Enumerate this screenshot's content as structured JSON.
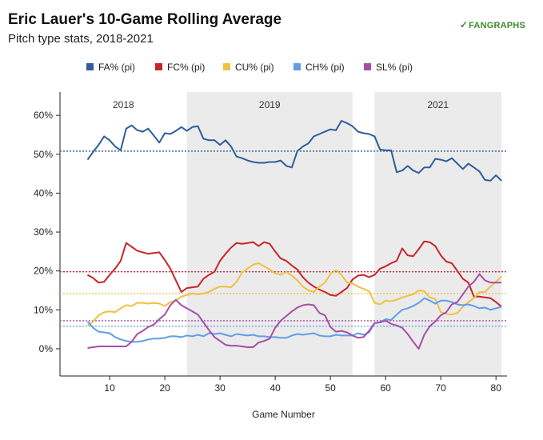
{
  "header": {
    "title": "Eric Lauer's 10-Game Rolling Average",
    "subtitle": "Pitch type stats, 2018-2021",
    "brand": "FANGRAPHS",
    "brand_mark": "✓"
  },
  "chart_data": {
    "type": "line",
    "title": "Eric Lauer's 10-Game Rolling Average",
    "subtitle": "Pitch type stats, 2018-2021",
    "xlabel": "Game Number",
    "ylabel": "",
    "xlim": [
      1,
      82
    ],
    "ylim": [
      -7,
      66
    ],
    "x_ticks": [
      10,
      20,
      30,
      40,
      50,
      60,
      70,
      80
    ],
    "y_ticks": [
      0,
      10,
      20,
      30,
      40,
      50,
      60
    ],
    "y_tick_labels": [
      "0%",
      "10%",
      "20%",
      "30%",
      "40%",
      "50%",
      "60%"
    ],
    "grid": false,
    "legend_position": "top",
    "seasons": [
      {
        "label": "2018",
        "start": 1,
        "end": 24,
        "shaded": false
      },
      {
        "label": "2019",
        "start": 24,
        "end": 54,
        "shaded": true
      },
      {
        "label": "2021",
        "start": 58,
        "end": 81,
        "shaded": true
      }
    ],
    "series": [
      {
        "name": "FA% (pi)",
        "color": "#2f5d9a",
        "average": 50.8,
        "x": [
          6,
          7,
          8,
          9,
          10,
          11,
          12,
          13,
          14,
          15,
          16,
          17,
          18,
          19,
          20,
          21,
          22,
          23,
          24,
          25,
          26,
          27,
          28,
          29,
          30,
          31,
          32,
          33,
          34,
          35,
          36,
          37,
          38,
          39,
          40,
          41,
          42,
          43,
          44,
          45,
          46,
          47,
          48,
          49,
          50,
          51,
          52,
          53,
          54,
          55,
          56,
          57,
          58,
          59,
          60,
          61,
          62,
          63,
          64,
          65,
          66,
          67,
          68,
          69,
          70,
          71,
          72,
          73,
          74,
          75,
          76,
          77,
          78,
          79,
          80,
          81
        ],
        "values": [
          48.6,
          50.6,
          52.4,
          54.6,
          53.6,
          52.0,
          51.0,
          56.6,
          57.4,
          56.2,
          55.8,
          56.6,
          54.8,
          53.0,
          55.4,
          55.2,
          56.0,
          57.0,
          56.0,
          57.0,
          57.2,
          54.0,
          53.6,
          53.6,
          52.4,
          53.6,
          52.0,
          49.4,
          49.0,
          48.4,
          48.0,
          47.8,
          47.8,
          48.0,
          48.0,
          48.4,
          47.0,
          46.6,
          50.8,
          52.0,
          52.8,
          54.6,
          55.2,
          55.8,
          56.4,
          56.2,
          58.6,
          58.0,
          57.2,
          55.8,
          55.4,
          55.2,
          54.6,
          51.2,
          51.0,
          51.0,
          45.4,
          45.8,
          47.0,
          45.8,
          45.2,
          46.6,
          46.6,
          48.8,
          48.6,
          48.2,
          49.0,
          47.6,
          46.2,
          47.6,
          46.6,
          45.6,
          43.4,
          43.2,
          44.6,
          43.2
        ]
      },
      {
        "name": "FC% (pi)",
        "color": "#c8242b",
        "average": 19.8,
        "x": [
          6,
          7,
          8,
          9,
          10,
          11,
          12,
          13,
          14,
          15,
          16,
          17,
          18,
          19,
          20,
          21,
          22,
          23,
          24,
          25,
          26,
          27,
          28,
          29,
          30,
          31,
          32,
          33,
          34,
          35,
          36,
          37,
          38,
          39,
          40,
          41,
          42,
          43,
          44,
          45,
          46,
          47,
          48,
          49,
          50,
          51,
          52,
          53,
          54,
          55,
          56,
          57,
          58,
          59,
          60,
          61,
          62,
          63,
          64,
          65,
          66,
          67,
          68,
          69,
          70,
          71,
          72,
          73,
          74,
          75,
          76,
          77,
          78,
          79,
          80,
          81
        ],
        "values": [
          19.0,
          18.2,
          17.0,
          17.2,
          19.0,
          20.6,
          22.6,
          27.2,
          26.2,
          25.2,
          24.8,
          24.4,
          24.6,
          24.8,
          22.8,
          20.6,
          17.6,
          14.6,
          15.6,
          15.8,
          16.0,
          18.0,
          19.0,
          19.8,
          22.6,
          24.4,
          26.0,
          27.2,
          27.0,
          27.2,
          27.4,
          26.4,
          27.4,
          27.0,
          25.0,
          23.2,
          22.6,
          21.4,
          20.4,
          18.4,
          17.0,
          16.0,
          15.2,
          14.6,
          13.8,
          13.6,
          14.6,
          15.6,
          17.8,
          18.8,
          19.0,
          18.4,
          19.0,
          20.6,
          21.2,
          22.0,
          22.6,
          25.8,
          24.0,
          23.8,
          25.6,
          27.6,
          27.4,
          26.4,
          24.0,
          22.4,
          22.0,
          20.0,
          18.0,
          17.0,
          13.4,
          13.4,
          13.2,
          13.0,
          12.0,
          10.8
        ]
      },
      {
        "name": "CU% (pi)",
        "color": "#f0c040",
        "average": 14.2,
        "x": [
          6,
          7,
          8,
          9,
          10,
          11,
          12,
          13,
          14,
          15,
          16,
          17,
          18,
          19,
          20,
          21,
          22,
          23,
          24,
          25,
          26,
          27,
          28,
          29,
          30,
          31,
          32,
          33,
          34,
          35,
          36,
          37,
          38,
          39,
          40,
          41,
          42,
          43,
          44,
          45,
          46,
          47,
          48,
          49,
          50,
          51,
          52,
          53,
          54,
          55,
          56,
          57,
          58,
          59,
          60,
          61,
          62,
          63,
          64,
          65,
          66,
          67,
          68,
          69,
          70,
          71,
          72,
          73,
          74,
          75,
          76,
          77,
          78,
          79,
          80,
          81
        ],
        "values": [
          6.0,
          7.0,
          8.6,
          9.4,
          9.6,
          9.4,
          10.4,
          11.2,
          11.0,
          11.8,
          11.8,
          11.6,
          11.8,
          11.6,
          11.0,
          12.0,
          12.4,
          13.4,
          13.8,
          14.2,
          14.0,
          14.2,
          14.6,
          15.4,
          16.0,
          16.0,
          15.8,
          17.2,
          19.6,
          20.6,
          21.6,
          22.0,
          21.2,
          20.4,
          19.4,
          19.0,
          19.8,
          18.8,
          17.6,
          16.0,
          15.0,
          14.6,
          16.0,
          17.0,
          19.2,
          20.2,
          19.0,
          17.0,
          16.8,
          16.0,
          15.4,
          14.8,
          11.8,
          11.4,
          12.4,
          12.2,
          12.6,
          13.2,
          13.6,
          14.0,
          15.0,
          14.8,
          13.2,
          12.8,
          9.4,
          9.0,
          8.8,
          9.2,
          10.8,
          12.0,
          13.0,
          14.6,
          14.6,
          16.0,
          17.2,
          18.6
        ]
      },
      {
        "name": "CH% (pi)",
        "color": "#5f9ee8",
        "average": 5.8,
        "x": [
          6,
          7,
          8,
          9,
          10,
          11,
          12,
          13,
          14,
          15,
          16,
          17,
          18,
          19,
          20,
          21,
          22,
          23,
          24,
          25,
          26,
          27,
          28,
          29,
          30,
          31,
          32,
          33,
          34,
          35,
          36,
          37,
          38,
          39,
          40,
          41,
          42,
          43,
          44,
          45,
          46,
          47,
          48,
          49,
          50,
          51,
          52,
          53,
          54,
          55,
          56,
          57,
          58,
          59,
          60,
          61,
          62,
          63,
          64,
          65,
          66,
          67,
          68,
          69,
          70,
          71,
          72,
          73,
          74,
          75,
          76,
          77,
          78,
          79,
          80,
          81
        ],
        "values": [
          7.0,
          5.4,
          4.4,
          4.2,
          4.0,
          3.0,
          2.4,
          2.0,
          1.8,
          1.8,
          2.0,
          2.4,
          2.6,
          2.6,
          2.8,
          3.2,
          3.2,
          3.0,
          3.4,
          3.2,
          3.6,
          3.2,
          4.0,
          3.8,
          4.0,
          3.6,
          3.2,
          3.8,
          3.6,
          3.4,
          3.6,
          3.2,
          3.2,
          3.0,
          3.0,
          2.8,
          2.8,
          3.4,
          3.8,
          3.6,
          3.8,
          4.0,
          3.4,
          3.2,
          3.2,
          3.6,
          3.4,
          3.4,
          3.4,
          4.0,
          3.6,
          4.2,
          6.6,
          6.8,
          7.6,
          7.4,
          8.8,
          10.0,
          10.4,
          11.0,
          11.8,
          13.0,
          12.4,
          11.6,
          12.4,
          12.4,
          12.0,
          11.4,
          11.2,
          11.4,
          11.0,
          10.4,
          10.6,
          10.0,
          10.4,
          10.8
        ]
      },
      {
        "name": "SL% (pi)",
        "color": "#a84ea8",
        "average": 7.2,
        "x": [
          6,
          7,
          8,
          9,
          10,
          11,
          12,
          13,
          14,
          15,
          16,
          17,
          18,
          19,
          20,
          21,
          22,
          23,
          24,
          25,
          26,
          27,
          28,
          29,
          30,
          31,
          32,
          33,
          34,
          35,
          36,
          37,
          38,
          39,
          40,
          41,
          42,
          43,
          44,
          45,
          46,
          47,
          48,
          49,
          50,
          51,
          52,
          53,
          54,
          55,
          56,
          57,
          58,
          59,
          60,
          61,
          62,
          63,
          64,
          65,
          66,
          67,
          68,
          69,
          70,
          71,
          72,
          73,
          74,
          75,
          76,
          77,
          78,
          79,
          80,
          81
        ],
        "values": [
          0.2,
          0.4,
          0.6,
          0.6,
          0.6,
          0.6,
          0.6,
          0.6,
          1.8,
          3.8,
          4.6,
          5.6,
          6.2,
          7.6,
          8.8,
          11.2,
          12.6,
          11.2,
          10.4,
          9.6,
          8.8,
          6.8,
          4.8,
          3.0,
          2.0,
          1.0,
          0.8,
          0.8,
          0.6,
          0.4,
          0.4,
          1.6,
          2.0,
          2.6,
          5.4,
          7.2,
          8.4,
          9.6,
          10.6,
          11.2,
          11.4,
          11.2,
          9.2,
          8.6,
          5.6,
          4.4,
          4.6,
          4.2,
          3.4,
          2.8,
          3.0,
          4.6,
          6.6,
          6.8,
          7.2,
          6.4,
          6.0,
          5.4,
          3.8,
          1.8,
          0.0,
          3.6,
          5.8,
          7.0,
          8.6,
          9.4,
          11.4,
          12.0,
          14.0,
          16.0,
          17.2,
          19.2,
          17.6,
          17.0,
          17.0,
          17.0
        ]
      }
    ]
  }
}
